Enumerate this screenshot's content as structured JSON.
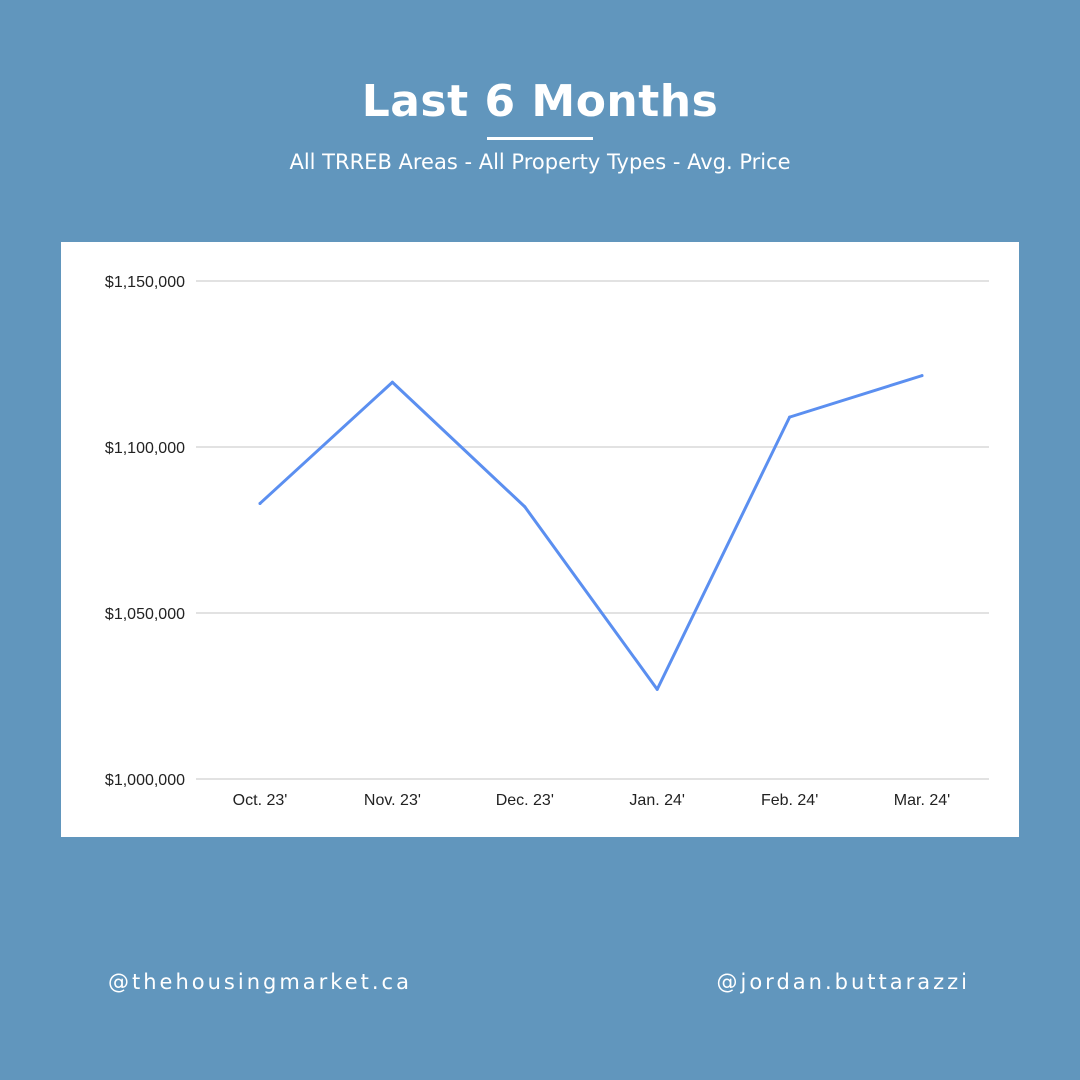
{
  "header": {
    "title": "Last 6 Months",
    "subtitle": "All TRREB Areas - All Property Types - Avg. Price"
  },
  "footer": {
    "left_handle": "@thehousingmarket.ca",
    "right_handle": "@jordan.buttarazzi"
  },
  "colors": {
    "background": "#6196bd",
    "line": "#5b8ff0",
    "grid": "#e2e2e2"
  },
  "chart_data": {
    "type": "line",
    "title": "",
    "xlabel": "",
    "ylabel": "",
    "categories": [
      "Oct. 23'",
      "Nov. 23'",
      "Dec. 23'",
      "Jan. 24'",
      "Feb. 24'",
      "Mar. 24'"
    ],
    "series": [
      {
        "values": [
          1083000,
          1119500,
          1082000,
          1027000,
          1109000,
          1121500
        ]
      }
    ],
    "ylim": [
      1000000,
      1150000
    ],
    "yticks": [
      1000000,
      1050000,
      1100000,
      1150000
    ],
    "ytick_labels": [
      "$1,000,000",
      "$1,050,000",
      "$1,100,000",
      "$1,150,000"
    ],
    "grid": true,
    "legend": "none"
  }
}
